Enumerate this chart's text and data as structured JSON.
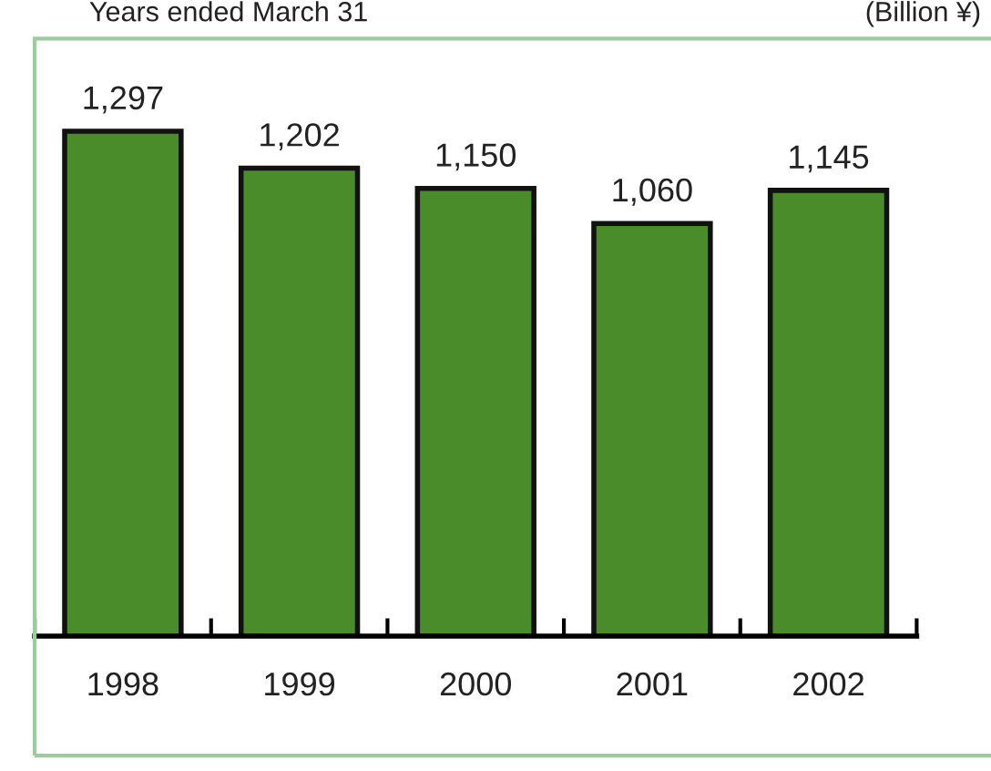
{
  "chart_data": {
    "type": "bar",
    "categories": [
      "1998",
      "1999",
      "2000",
      "2001",
      "2002"
    ],
    "values": [
      1297,
      1202,
      1150,
      1060,
      1145
    ],
    "color": "#4a8c2a",
    "data_labels": true,
    "value_labels": [
      "1,297",
      "1,202",
      "1,150",
      "1,060",
      "1,145"
    ],
    "annotations": [
      "Years ended March 31",
      "(Billion ¥)"
    ],
    "grid": false,
    "legend": false
  }
}
